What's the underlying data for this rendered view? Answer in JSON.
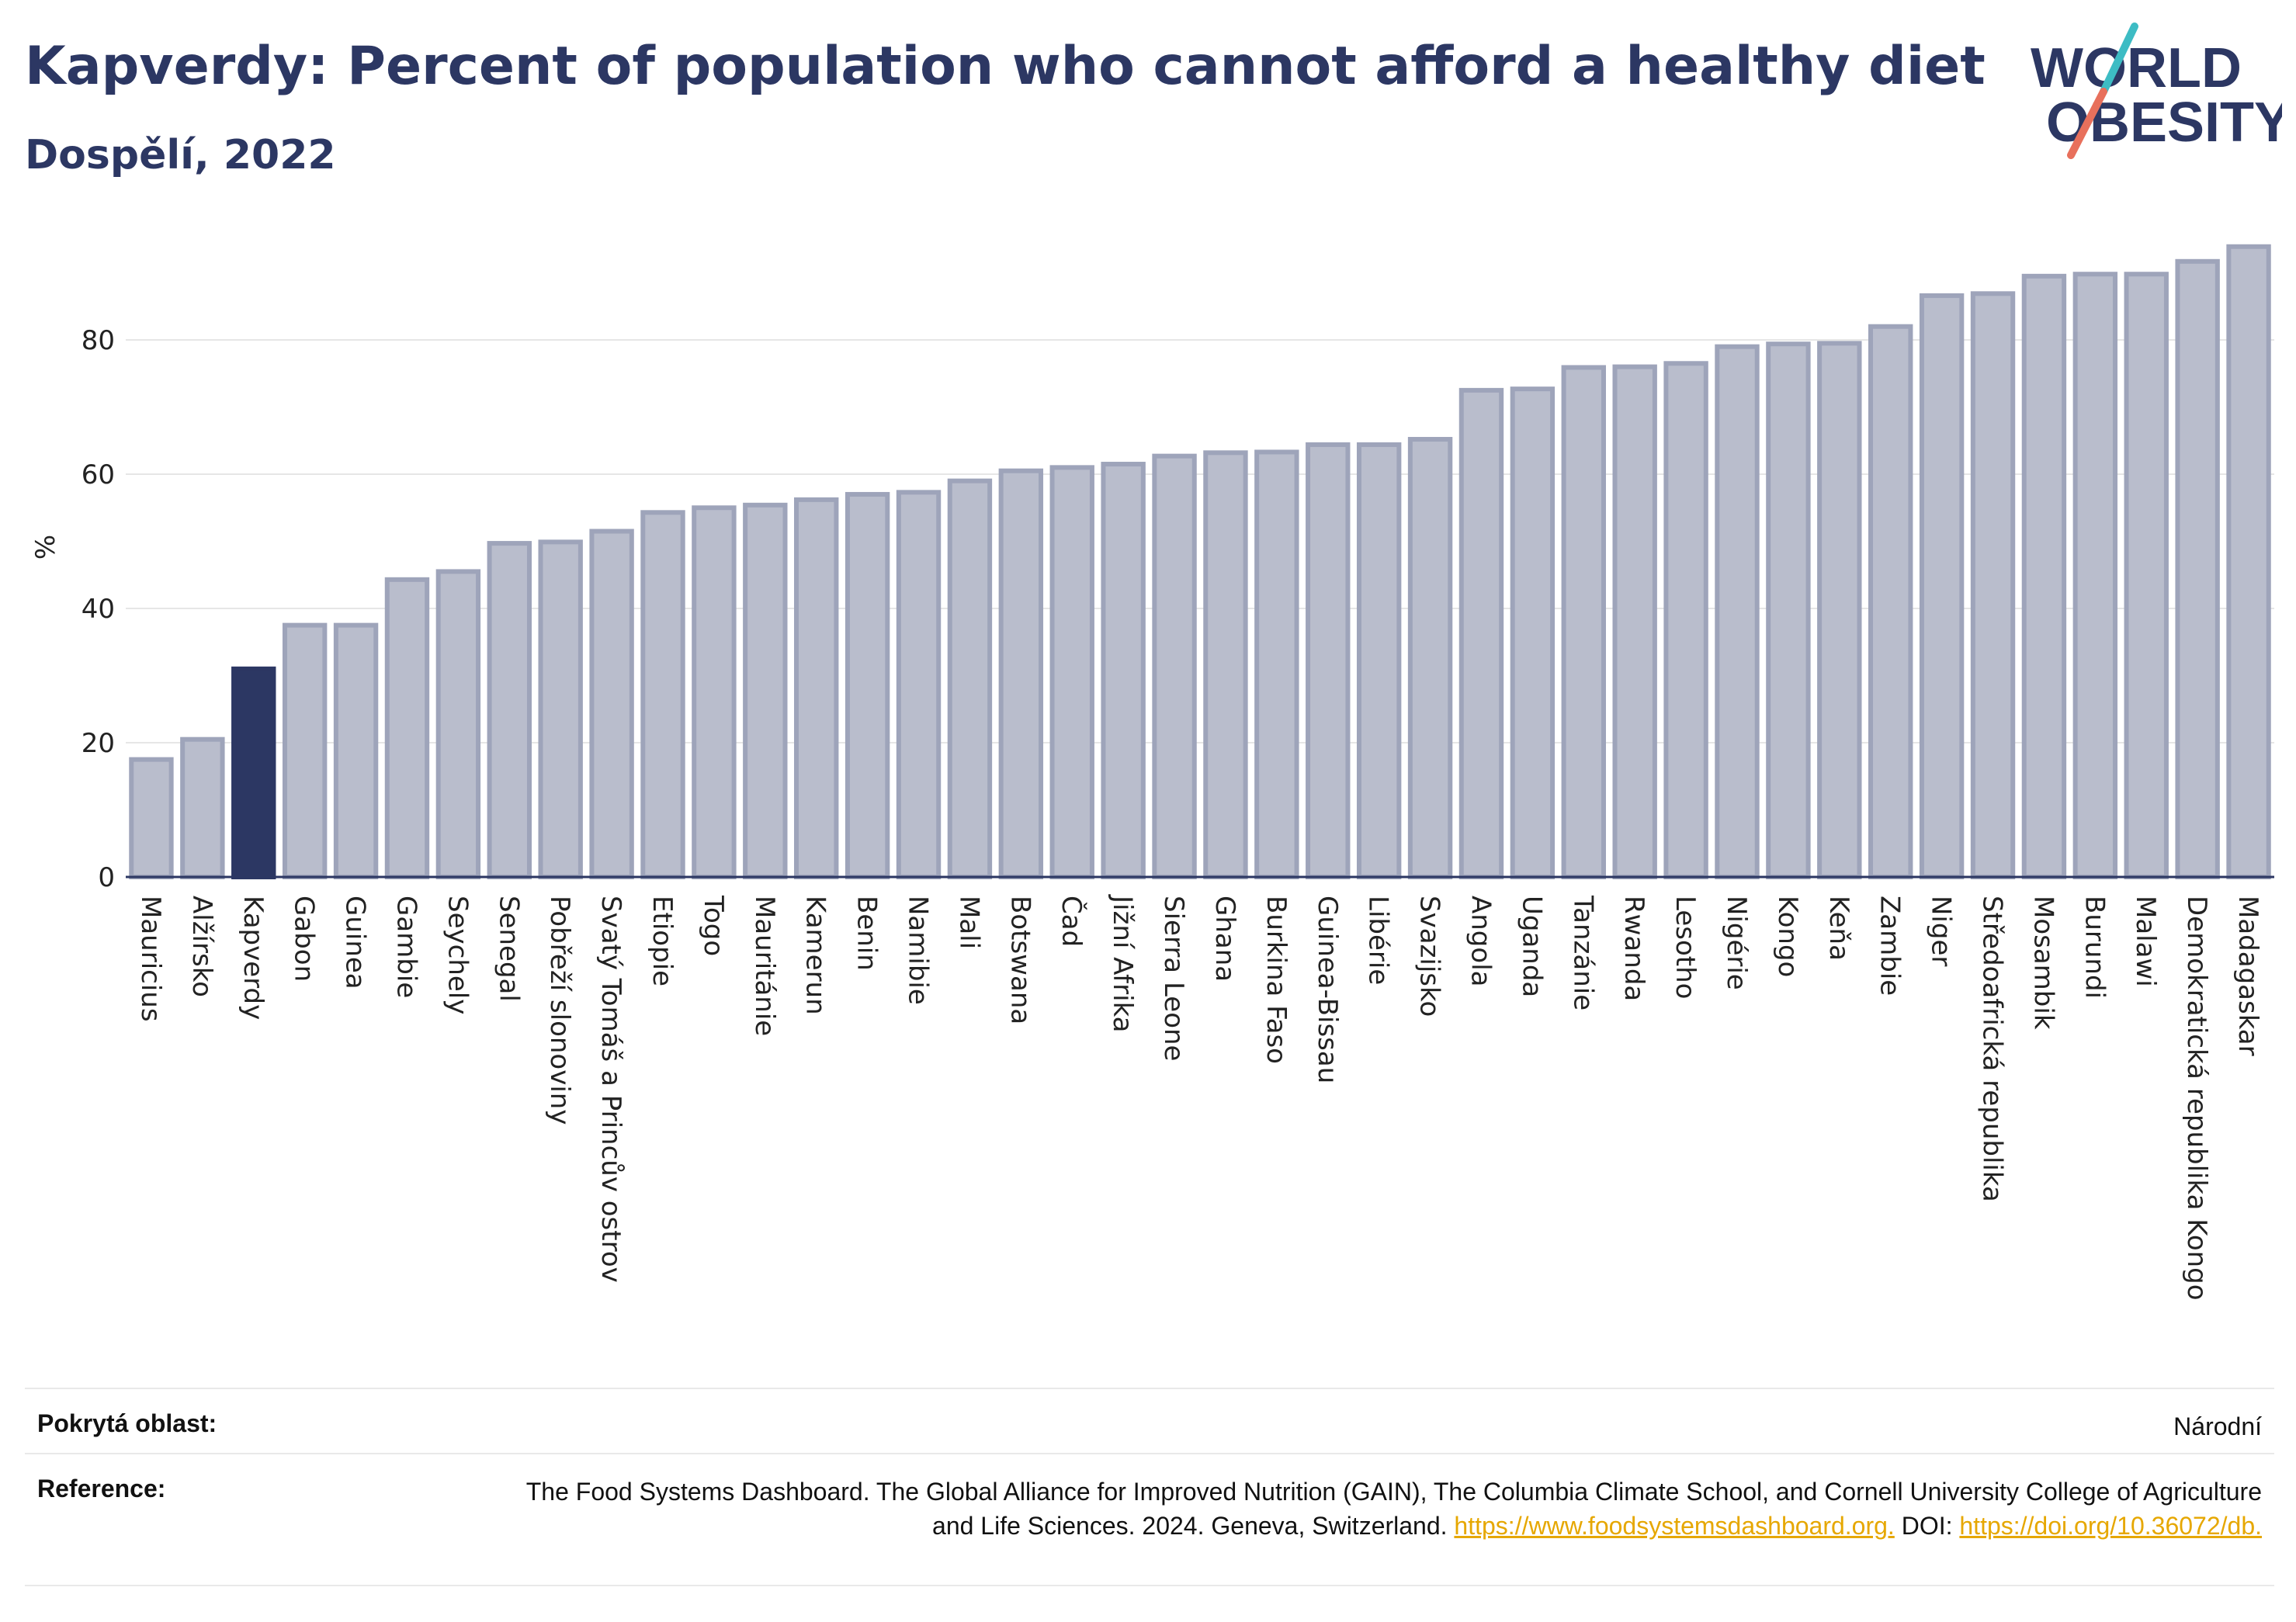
{
  "header": {
    "title": "Kapverdy: Percent of population who cannot afford a healthy diet",
    "subtitle": "Dospělí, 2022"
  },
  "logo": {
    "line1": "WORLD",
    "line2": "OBESITY",
    "colors": {
      "text": "#2c3763",
      "slash_teal": "#3dbcc4",
      "slash_coral": "#e8705c"
    }
  },
  "colors": {
    "bar_fill": "#b9bdcc",
    "bar_stroke": "#9ea4ba",
    "highlight": "#2c3763",
    "grid": "#e6e6e6",
    "axis": "#2c3763"
  },
  "chart_data": {
    "type": "bar",
    "title": "Kapverdy: Percent of population who cannot afford a healthy diet",
    "subtitle": "Dospělí, 2022",
    "ylabel": "%",
    "ylim": [
      0,
      100
    ],
    "yticks": [
      0,
      20,
      40,
      60,
      80
    ],
    "grid": true,
    "highlight_category": "Kapverdy",
    "categories": [
      "Mauricius",
      "Alžírsko",
      "Kapverdy",
      "Gabon",
      "Guinea",
      "Gambie",
      "Seychely",
      "Senegal",
      "Pobřeží slonoviny",
      "Svatý Tomáš a Princův ostrov",
      "Etiopie",
      "Togo",
      "Mauritánie",
      "Kamerun",
      "Benin",
      "Namibie",
      "Mali",
      "Botswana",
      "Čad",
      "Jižní Afrika",
      "Sierra Leone",
      "Ghana",
      "Burkina Faso",
      "Guinea-Bissau",
      "Libérie",
      "Svazijsko",
      "Angola",
      "Uganda",
      "Tanzánie",
      "Rwanda",
      "Lesotho",
      "Nigérie",
      "Kongo",
      "Keňa",
      "Zambie",
      "Niger",
      "Středoafrická republika",
      "Mosambik",
      "Burundi",
      "Malawi",
      "Demokratická republika Kongo",
      "Madagaskar"
    ],
    "values": [
      17.5,
      20.5,
      31.0,
      37.5,
      37.5,
      44.3,
      45.5,
      49.7,
      49.9,
      51.5,
      54.3,
      55.0,
      55.4,
      56.2,
      57.0,
      57.3,
      59.0,
      60.5,
      61.0,
      61.5,
      62.7,
      63.2,
      63.3,
      64.4,
      64.4,
      65.2,
      72.5,
      72.7,
      75.9,
      76.0,
      76.5,
      79.0,
      79.4,
      79.5,
      82.0,
      86.6,
      86.9,
      89.5,
      89.8,
      89.8,
      91.7,
      93.9
    ]
  },
  "footer": {
    "coverage_label": "Pokrytá oblast:",
    "coverage_value": "Národní",
    "reference_label": "Reference:",
    "reference_text": "The Food Systems Dashboard. The Global Alliance for Improved Nutrition (GAIN), The Columbia Climate School, and Cornell University College of Agriculture and Life Sciences. 2024. Geneva, Switzerland.",
    "reference_link": "https://www.foodsystemsdashboard.org.",
    "doi_label": "DOI:",
    "doi_link": "https://doi.org/10.36072/db."
  }
}
